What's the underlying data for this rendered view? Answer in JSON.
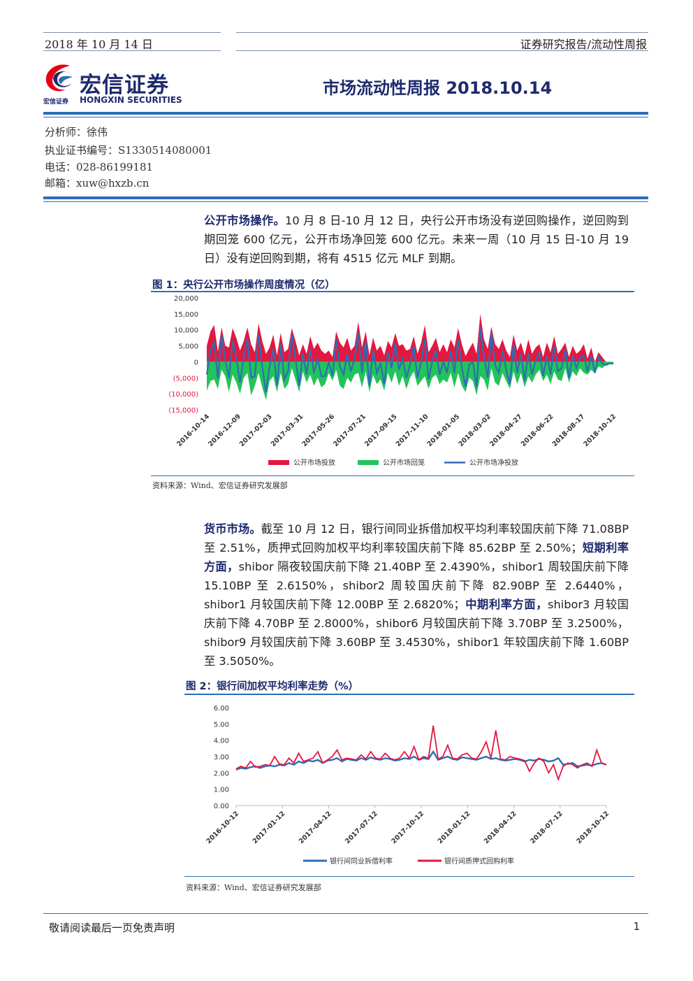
{
  "header": {
    "date": "2018 年 10 月 14 日",
    "category": "证券研究报告/流动性周报"
  },
  "logo": {
    "cn": "宏信证券",
    "en": "HONGXIN SECURITIES",
    "small": "宏信证券",
    "brand_color": "#1d2a6d",
    "accent_color": "#e60012"
  },
  "title": "市场流动性周报 2018.10.14",
  "analyst": {
    "name": "分析师：徐伟",
    "cert": "执业证书编号：S1330514080001",
    "phone": "电话：028-86199181",
    "email": "邮箱：xuw@hxzb.cn"
  },
  "para1": {
    "lead": "公开市场操作。",
    "text": "10 月 8 日-10 月 12 日，央行公开市场没有逆回购操作，逆回购到期回笼 600 亿元，公开市场净回笼 600 亿元。未来一周（10 月 15 日-10 月 19 日）没有逆回购到期，将有 4515 亿元 MLF 到期。"
  },
  "fig1": {
    "title": "图 1：央行公开市场操作周度情况（亿）",
    "source": "资料来源：Wind、宏信证券研究发展部"
  },
  "para2": {
    "lead": "货币市场。",
    "text1": "截至 10 月 12 日，银行间同业拆借加权平均利率较国庆前下降 71.08BP 至 2.51%，质押式回购加权平均利率较国庆前下降 85.62BP 至 2.50%；",
    "b1": "短期利率方面，",
    "text2": "shibor 隔夜较国庆前下降 21.40BP 至 2.4390%，shibor1 周较国庆前下降 15.10BP 至 2.6150%，shibor2 周较国庆前下降 82.90BP 至 2.6440%，shibor1 月较国庆前下降 12.00BP 至 2.6820%；",
    "b2": "中期利率方面，",
    "text3": "shibor3 月较国庆前下降 4.70BP 至 2.8000%，shibor6 月较国庆前下降 3.70BP 至 3.2500%，shibor9 月较国庆前下降 3.60BP 至 3.4530%，shibor1 年较国庆前下降 1.60BP 至 3.5050%。"
  },
  "fig2": {
    "title": "图 2：银行间加权平均利率走势（%）",
    "source": "资料来源：Wind、宏信证券研究发展部"
  },
  "footer": {
    "disclaimer": "敬请阅读最后一页免责声明",
    "page": "1"
  },
  "chart_data": [
    {
      "type": "area",
      "ylim": [
        -15000,
        20000
      ],
      "yticks": [
        "20,000",
        "15,000",
        "10,000",
        "5,000",
        "0",
        "(5,000)",
        "(10,000)",
        "(15,000)"
      ],
      "ytick_values": [
        20000,
        15000,
        10000,
        5000,
        0,
        -5000,
        -10000,
        -15000
      ],
      "xticks": [
        "2016-10-14",
        "2016-12-09",
        "2017-02-03",
        "2017-03-31",
        "2017-05-26",
        "2017-07-21",
        "2017-09-15",
        "2017-11-10",
        "2018-01-05",
        "2018-03-02",
        "2018-04-27",
        "2018-06-22",
        "2018-08-17",
        "2018-10-12"
      ],
      "legend": [
        "公开市场投放",
        "公开市场回笼",
        "公开市场净投放"
      ],
      "legend_position": "bottom",
      "colors": [
        "#e3173f",
        "#22c45a",
        "#2e6db5"
      ],
      "series": [
        {
          "name": "公开市场投放",
          "values": [
            5000,
            9500,
            11500,
            3200,
            10800,
            5000,
            4500,
            10500,
            7500,
            3500,
            6500,
            10800,
            5500,
            3000,
            12000,
            6500,
            2500,
            4500,
            8500,
            2000,
            9000,
            3000,
            4000,
            10500,
            6500,
            2000,
            5500,
            2500,
            8000,
            4000,
            6000,
            3500,
            2500,
            3500,
            1500,
            9500,
            6000,
            4500,
            7500,
            3500,
            5000,
            12500,
            4500,
            9500,
            2000,
            7500,
            3500,
            5000,
            2000,
            6500,
            4500,
            9000,
            5000,
            5500,
            3500,
            4000,
            8000,
            2500,
            6000,
            11500,
            3000,
            5000,
            7500,
            3000,
            5500,
            3000,
            7000,
            4500,
            10500,
            5500,
            1800,
            4000,
            6000,
            2500,
            15000,
            7000,
            4000,
            11000,
            5500,
            4000,
            7000,
            3500,
            1500,
            8500,
            3500,
            6000,
            2000,
            7000,
            2500,
            4500,
            5500,
            1500,
            6000,
            3000,
            8000,
            2500,
            4000,
            6000,
            1500,
            5000,
            2500,
            3500,
            5500,
            1000,
            4500,
            0,
            3000,
            1500,
            0,
            0,
            0
          ]
        },
        {
          "name": "公开市场回笼",
          "values": [
            -9000,
            -6000,
            -5500,
            -8500,
            -2500,
            -4500,
            -9500,
            -4000,
            -6500,
            -10000,
            -5000,
            -3500,
            -10500,
            -7500,
            -3500,
            -8000,
            -12000,
            -6000,
            -4500,
            -9500,
            -3500,
            -8500,
            -7000,
            -2000,
            -5500,
            -9500,
            -3000,
            -6500,
            -4000,
            -7500,
            -5000,
            -8000,
            -7000,
            -3500,
            -6000,
            -2500,
            -7500,
            -8500,
            -5000,
            -6500,
            -4000,
            -3500,
            -8000,
            -3000,
            -9500,
            -4000,
            -7000,
            -5500,
            -9000,
            -3500,
            -6500,
            -3000,
            -7500,
            -4500,
            -8500,
            -5000,
            -3000,
            -7500,
            -6000,
            -4500,
            -8500,
            -5000,
            -4000,
            -7000,
            -5500,
            -6500,
            -3500,
            -8000,
            -3500,
            -7500,
            -9500,
            -5000,
            -6000,
            -10500,
            -4500,
            -5500,
            -9000,
            -2000,
            -6500,
            -7500,
            -3500,
            -6000,
            -8500,
            -3000,
            -7000,
            -3500,
            -8000,
            -4500,
            -6500,
            -4000,
            -2500,
            -6000,
            -4000,
            -7000,
            -3000,
            -5500,
            -6000,
            -2000,
            -6500,
            -3000,
            -4500,
            -2000,
            -3500,
            -4000,
            -2500,
            -3500,
            -1500,
            -2000,
            -1000,
            -500,
            -600
          ]
        },
        {
          "name": "公开市场净投放",
          "values": [
            -4000,
            3500,
            6000,
            -5300,
            8300,
            500,
            -5000,
            6500,
            1000,
            -6500,
            1500,
            7300,
            -5000,
            -4500,
            8500,
            -1500,
            -9500,
            -1500,
            4000,
            -7500,
            5500,
            -5500,
            -3000,
            8500,
            1000,
            -7500,
            2500,
            -4000,
            4000,
            -3500,
            1000,
            -4500,
            -4500,
            0,
            -4500,
            7000,
            -1500,
            -4000,
            2500,
            -3000,
            1000,
            9000,
            -3500,
            6500,
            -7500,
            3500,
            -3500,
            -500,
            -7000,
            3000,
            -2000,
            6000,
            -2500,
            1000,
            -5000,
            -1000,
            5000,
            -5000,
            0,
            7000,
            -5500,
            0,
            3500,
            -4000,
            0,
            -3500,
            3500,
            -3500,
            7000,
            -2000,
            -7700,
            -1000,
            0,
            -8000,
            10500,
            1500,
            -5000,
            9000,
            -1000,
            -3500,
            3500,
            -2500,
            -7000,
            5500,
            -3500,
            2500,
            -6000,
            2500,
            -4000,
            500,
            3000,
            -4500,
            2000,
            -4000,
            5000,
            -3000,
            -2000,
            4000,
            -5000,
            2000,
            -2000,
            1500,
            2000,
            -3000,
            2000,
            -3500,
            1500,
            -500,
            -1000,
            -500,
            -600
          ]
        }
      ]
    },
    {
      "type": "line",
      "ylim": [
        0,
        6
      ],
      "yticks": [
        "6.00",
        "5.00",
        "4.00",
        "3.00",
        "2.00",
        "1.00",
        "0.00"
      ],
      "ytick_values": [
        6,
        5,
        4,
        3,
        2,
        1,
        0
      ],
      "xticks": [
        "2016-10-12",
        "2017-01-12",
        "2017-04-12",
        "2017-07-12",
        "2017-10-12",
        "2018-01-12",
        "2018-04-12",
        "2018-07-12",
        "2018-10-12"
      ],
      "legend": [
        "银行间同业拆借利率",
        "银行间质押式回购利率"
      ],
      "legend_position": "bottom",
      "colors": [
        "#2e6db5",
        "#e3173f"
      ],
      "series": [
        {
          "name": "银行间同业拆借利率",
          "values": [
            2.2,
            2.3,
            2.25,
            2.35,
            2.4,
            2.3,
            2.4,
            2.45,
            2.4,
            2.5,
            2.45,
            2.6,
            2.5,
            2.7,
            2.6,
            2.75,
            2.7,
            2.8,
            2.6,
            2.75,
            2.8,
            2.9,
            2.7,
            2.85,
            2.8,
            2.75,
            2.9,
            2.8,
            2.95,
            2.85,
            2.8,
            2.9,
            2.85,
            2.75,
            2.8,
            2.9,
            2.85,
            3.0,
            2.8,
            2.9,
            2.85,
            3.3,
            2.8,
            2.9,
            3.0,
            2.85,
            2.8,
            2.95,
            2.9,
            2.85,
            2.8,
            2.9,
            3.0,
            2.85,
            2.9,
            2.8,
            2.75,
            2.8,
            2.85,
            2.8,
            2.7,
            2.8,
            2.75,
            2.85,
            2.8,
            2.7,
            2.75,
            2.9,
            2.5,
            2.55,
            2.6,
            2.4,
            2.45,
            2.5,
            2.45,
            2.55,
            2.6,
            2.5
          ]
        },
        {
          "name": "银行间质押式回购利率",
          "values": [
            2.25,
            2.4,
            2.3,
            2.7,
            2.35,
            2.4,
            2.5,
            2.45,
            3.0,
            2.55,
            2.5,
            2.9,
            2.6,
            3.2,
            2.7,
            2.8,
            2.9,
            3.3,
            2.6,
            2.8,
            3.0,
            3.4,
            2.8,
            2.9,
            2.85,
            2.8,
            3.1,
            2.85,
            3.3,
            2.9,
            2.85,
            3.2,
            2.9,
            2.8,
            2.9,
            3.3,
            2.9,
            3.6,
            2.8,
            3.0,
            2.9,
            4.9,
            2.85,
            3.0,
            3.7,
            2.9,
            2.85,
            3.1,
            3.2,
            2.9,
            2.85,
            3.3,
            3.9,
            2.9,
            4.6,
            2.85,
            2.8,
            3.0,
            2.9,
            2.85,
            2.75,
            2.1,
            2.6,
            2.9,
            2.7,
            2.0,
            2.5,
            1.6,
            2.4,
            2.6,
            2.5,
            2.3,
            2.5,
            2.6,
            2.4,
            3.4,
            2.6,
            2.5
          ]
        }
      ]
    }
  ]
}
